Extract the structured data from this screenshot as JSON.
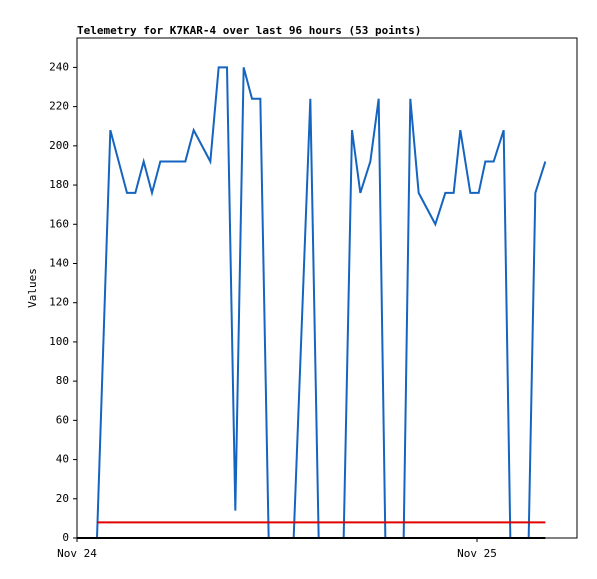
{
  "chart_data": {
    "type": "line",
    "title": "Telemetry for K7KAR-4 over last 96 hours (53 points)",
    "y_label": "Values",
    "xlim": [
      0,
      30
    ],
    "xticks": [
      {
        "value": 0,
        "label": "Nov 24"
      },
      {
        "value": 24,
        "label": "Nov 25"
      }
    ],
    "ylim": [
      0,
      255
    ],
    "yticks": [
      0,
      20,
      40,
      60,
      80,
      100,
      120,
      140,
      160,
      180,
      200,
      220,
      240
    ],
    "series": [
      {
        "color": "#1565c0",
        "x": [
          1.2,
          2.0,
          3.0,
          3.5,
          4.0,
          4.5,
          5.0,
          6.5,
          7.0,
          8.0,
          8.5,
          9.0,
          9.5,
          10.0,
          10.5,
          11.0,
          11.5,
          13.0,
          14.0,
          14.5,
          16.0,
          16.5,
          17.0,
          17.6,
          18.1,
          18.5,
          19.6,
          20.0,
          20.5,
          21.5,
          22.1,
          22.6,
          23.0,
          23.6,
          24.1,
          24.5,
          25.0,
          25.6,
          26.0,
          27.1,
          27.5,
          28.1
        ],
        "values": [
          0,
          208,
          176,
          176,
          192,
          176,
          192,
          192,
          208,
          192,
          240,
          240,
          14,
          240,
          224,
          224,
          0,
          0,
          224,
          0,
          0,
          208,
          176,
          192,
          224,
          0,
          0,
          224,
          176,
          160,
          176,
          176,
          208,
          176,
          176,
          192,
          192,
          208,
          0,
          0,
          176,
          192
        ]
      },
      {
        "color": "#e00000",
        "x": [
          1.2,
          28.1
        ],
        "values": [
          8,
          8
        ]
      },
      {
        "color": "#000000",
        "x": [
          0,
          28.1
        ],
        "values": [
          0,
          0
        ]
      }
    ]
  }
}
